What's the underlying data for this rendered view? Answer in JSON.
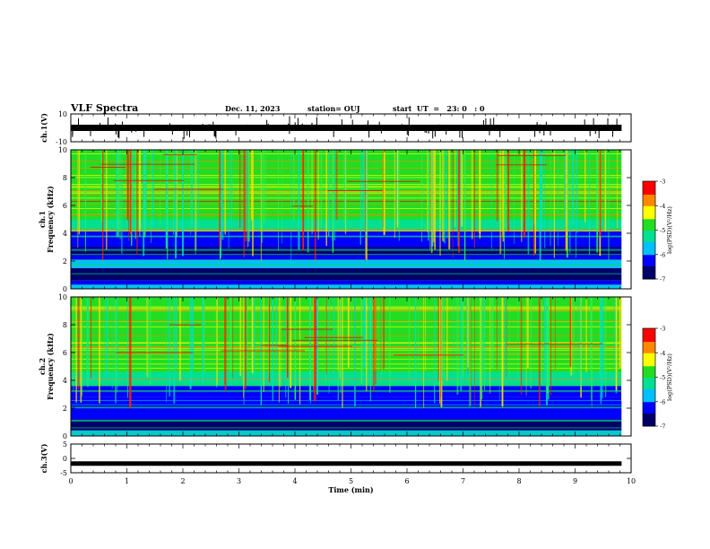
{
  "header": {
    "title": "VLF Spectra",
    "date": "Dec. 11, 2023",
    "station": "station= OUJ",
    "start": "start  UT  =   23: 0   : 0"
  },
  "chart_data": [
    {
      "type": "line",
      "name": "ch1-waveform",
      "ylabel": "ch.1(V)",
      "ylim": [
        -10,
        10
      ],
      "yticks": [
        "10",
        "-10"
      ],
      "xlim": [
        0,
        10
      ],
      "baseline_value": 0,
      "series": [
        {
          "name": "ch.1",
          "color": "#000000"
        }
      ]
    },
    {
      "type": "heatmap",
      "name": "ch1-spectrogram",
      "ylabel_channel": "ch.1",
      "ylabel": "Frequency  (kHz)",
      "ylim": [
        0,
        10
      ],
      "yticks": [
        0,
        2,
        4,
        6,
        8,
        10
      ],
      "xlim": [
        0,
        9.83
      ],
      "colorbar": {
        "label": "log(PSD)(V²/Hz)",
        "range": [
          -7,
          -3
        ],
        "ticks": [
          -7,
          -6,
          -5,
          -4,
          -3
        ]
      }
    },
    {
      "type": "heatmap",
      "name": "ch2-spectrogram",
      "ylabel_channel": "ch.2",
      "ylabel": "Frequency  (kHz)",
      "ylim": [
        0,
        10
      ],
      "yticks": [
        0,
        2,
        4,
        6,
        8,
        10
      ],
      "xlim": [
        0,
        9.83
      ],
      "colorbar": {
        "label": "log(PSD)(V²/Hz)",
        "range": [
          -7,
          -3
        ],
        "ticks": [
          -7,
          -6,
          -5,
          -4,
          -3
        ]
      }
    },
    {
      "type": "line",
      "name": "ch3-waveform",
      "ylabel": "ch.3(V)",
      "ylim": [
        -5,
        5
      ],
      "yticks": [
        "5",
        "0",
        "-5"
      ],
      "xlim": [
        0,
        10
      ],
      "constant_value": -1.8,
      "series": [
        {
          "name": "ch.3",
          "color": "#000000"
        }
      ]
    }
  ],
  "xaxis": {
    "label": "Time  (min)",
    "range": [
      0,
      10
    ],
    "ticks": [
      0,
      1,
      2,
      3,
      4,
      5,
      6,
      7,
      8,
      9,
      10
    ]
  },
  "colors": {
    "axis": "#000000",
    "colormap": [
      "#000066",
      "#0000ff",
      "#00bfff",
      "#00e090",
      "#22dd22",
      "#ffff00",
      "#ff8800",
      "#ff0000",
      "#ffffff"
    ]
  }
}
